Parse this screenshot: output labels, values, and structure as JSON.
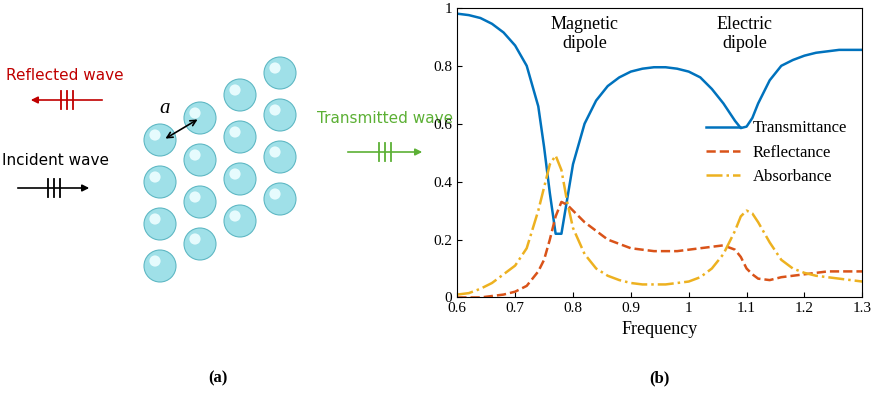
{
  "panel_labels": [
    "(a)",
    "(b)"
  ],
  "diagram": {
    "incident": "Incident wave",
    "reflected": "Reflected wave",
    "transmitted": "Transmitted wave",
    "spacing_label": "a"
  },
  "chart_data": {
    "type": "line",
    "x_label": "Frequency",
    "annotations": [
      "Magnetic\ndipole",
      "Electric\ndipole"
    ],
    "x": [
      0.6,
      0.62,
      0.64,
      0.66,
      0.68,
      0.7,
      0.72,
      0.74,
      0.75,
      0.76,
      0.77,
      0.78,
      0.79,
      0.8,
      0.82,
      0.84,
      0.86,
      0.88,
      0.9,
      0.92,
      0.94,
      0.96,
      0.98,
      1.0,
      1.02,
      1.04,
      1.06,
      1.08,
      1.09,
      1.1,
      1.11,
      1.12,
      1.14,
      1.16,
      1.18,
      1.2,
      1.22,
      1.24,
      1.26,
      1.28,
      1.3
    ],
    "xlim": [
      0.6,
      1.3
    ],
    "xticks": [
      0.6,
      0.7,
      0.8,
      0.9,
      1,
      1.1,
      1.2,
      1.3
    ],
    "ylim": [
      0,
      1
    ],
    "yticks": [
      0,
      0.2,
      0.4,
      0.6,
      0.8,
      1
    ],
    "grid": false,
    "legend": "center right",
    "series": [
      {
        "name": "Transmittance",
        "color": "#0072bd",
        "line_style": "solid",
        "values": [
          0.98,
          0.975,
          0.965,
          0.945,
          0.915,
          0.87,
          0.8,
          0.66,
          0.52,
          0.36,
          0.22,
          0.22,
          0.34,
          0.46,
          0.6,
          0.68,
          0.73,
          0.76,
          0.78,
          0.79,
          0.795,
          0.795,
          0.79,
          0.78,
          0.76,
          0.72,
          0.67,
          0.61,
          0.585,
          0.59,
          0.62,
          0.67,
          0.75,
          0.8,
          0.82,
          0.835,
          0.845,
          0.85,
          0.855,
          0.855,
          0.855
        ]
      },
      {
        "name": "Reflectance",
        "color": "#d95319",
        "line_style": "dashed",
        "values": [
          0,
          0,
          0,
          0.005,
          0.01,
          0.02,
          0.04,
          0.09,
          0.13,
          0.2,
          0.28,
          0.33,
          0.32,
          0.3,
          0.26,
          0.23,
          0.2,
          0.185,
          0.17,
          0.165,
          0.16,
          0.16,
          0.16,
          0.165,
          0.17,
          0.175,
          0.18,
          0.165,
          0.14,
          0.1,
          0.08,
          0.065,
          0.06,
          0.07,
          0.075,
          0.08,
          0.085,
          0.09,
          0.09,
          0.09,
          0.09
        ]
      },
      {
        "name": "Absorbance",
        "color": "#edb120",
        "line_style": "dashdot",
        "values": [
          0.01,
          0.015,
          0.03,
          0.05,
          0.08,
          0.11,
          0.17,
          0.3,
          0.38,
          0.46,
          0.49,
          0.44,
          0.33,
          0.24,
          0.15,
          0.1,
          0.075,
          0.06,
          0.05,
          0.045,
          0.045,
          0.045,
          0.05,
          0.055,
          0.07,
          0.1,
          0.15,
          0.23,
          0.28,
          0.3,
          0.29,
          0.26,
          0.19,
          0.13,
          0.1,
          0.085,
          0.075,
          0.07,
          0.065,
          0.06,
          0.055
        ]
      }
    ]
  }
}
